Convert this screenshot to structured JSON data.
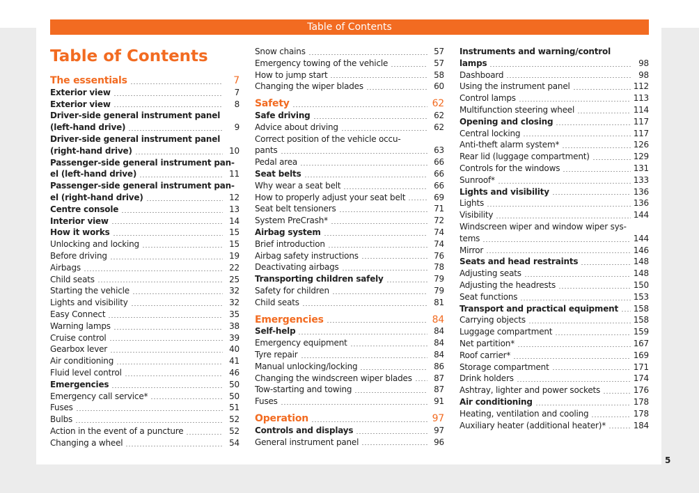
{
  "header": {
    "banner": "Table of Contents",
    "title": "Table of Contents"
  },
  "columns": [
    [
      {
        "style": "section",
        "lines": [
          "The essentials"
        ],
        "page": 7
      },
      {
        "style": "bold",
        "lines": [
          "Exterior view"
        ],
        "page": 7
      },
      {
        "style": "bold",
        "lines": [
          "Exterior view"
        ],
        "page": 8
      },
      {
        "style": "bold",
        "lines": [
          "Driver-side general instrument panel",
          "(left-hand drive)"
        ],
        "page": 9
      },
      {
        "style": "bold",
        "lines": [
          "Driver-side general instrument panel",
          "(right-hand drive)"
        ],
        "page": 10
      },
      {
        "style": "bold",
        "lines": [
          "Passenger-side general instrument pan-",
          "el (left-hand drive)"
        ],
        "page": 11
      },
      {
        "style": "bold",
        "lines": [
          "Passenger-side general instrument pan-",
          "el (right-hand drive)"
        ],
        "page": 12
      },
      {
        "style": "bold",
        "lines": [
          "Centre console"
        ],
        "page": 13
      },
      {
        "style": "bold",
        "lines": [
          "Interior view"
        ],
        "page": 14
      },
      {
        "style": "bold",
        "lines": [
          "How it works"
        ],
        "page": 15
      },
      {
        "style": "normal",
        "lines": [
          "Unlocking and locking"
        ],
        "page": 15
      },
      {
        "style": "normal",
        "lines": [
          "Before driving"
        ],
        "page": 19
      },
      {
        "style": "normal",
        "lines": [
          "Airbags"
        ],
        "page": 22
      },
      {
        "style": "normal",
        "lines": [
          "Child seats"
        ],
        "page": 25
      },
      {
        "style": "normal",
        "lines": [
          "Starting the vehicle"
        ],
        "page": 32
      },
      {
        "style": "normal",
        "lines": [
          "Lights and visibility"
        ],
        "page": 32
      },
      {
        "style": "normal",
        "lines": [
          "Easy Connect"
        ],
        "page": 35
      },
      {
        "style": "normal",
        "lines": [
          "Warning lamps"
        ],
        "page": 38
      },
      {
        "style": "normal",
        "lines": [
          "Cruise control"
        ],
        "page": 39
      },
      {
        "style": "normal",
        "lines": [
          "Gearbox lever"
        ],
        "page": 40
      },
      {
        "style": "normal",
        "lines": [
          "Air conditioning"
        ],
        "page": 41
      },
      {
        "style": "normal",
        "lines": [
          "Fluid level control"
        ],
        "page": 46
      },
      {
        "style": "bold",
        "lines": [
          "Emergencies"
        ],
        "page": 50
      },
      {
        "style": "normal",
        "lines": [
          "Emergency call service*"
        ],
        "page": 50
      },
      {
        "style": "normal",
        "lines": [
          "Fuses"
        ],
        "page": 51
      },
      {
        "style": "normal",
        "lines": [
          "Bulbs"
        ],
        "page": 52
      },
      {
        "style": "normal",
        "lines": [
          "Action in the event of a puncture"
        ],
        "page": 52
      },
      {
        "style": "normal",
        "lines": [
          "Changing a wheel"
        ],
        "page": 54
      }
    ],
    [
      {
        "style": "normal",
        "lines": [
          "Snow chains"
        ],
        "page": 57
      },
      {
        "style": "normal",
        "lines": [
          "Emergency towing of the vehicle"
        ],
        "page": 57
      },
      {
        "style": "normal",
        "lines": [
          "How to jump start"
        ],
        "page": 58
      },
      {
        "style": "normal",
        "lines": [
          "Changing the wiper blades"
        ],
        "page": 60
      },
      {
        "style": "section",
        "lines": [
          "Safety"
        ],
        "page": 62
      },
      {
        "style": "bold",
        "lines": [
          "Safe driving"
        ],
        "page": 62
      },
      {
        "style": "normal",
        "lines": [
          "Advice about driving"
        ],
        "page": 62
      },
      {
        "style": "normal",
        "lines": [
          "Correct position of the vehicle occu-",
          "pants"
        ],
        "page": 63
      },
      {
        "style": "normal",
        "lines": [
          "Pedal area"
        ],
        "page": 66
      },
      {
        "style": "bold",
        "lines": [
          "Seat belts"
        ],
        "page": 66
      },
      {
        "style": "normal",
        "lines": [
          "Why wear a seat belt"
        ],
        "page": 66
      },
      {
        "style": "normal",
        "lines": [
          "How to properly adjust your seat belt"
        ],
        "page": 69
      },
      {
        "style": "normal",
        "lines": [
          "Seat belt tensioners"
        ],
        "page": 71
      },
      {
        "style": "normal",
        "lines": [
          "System PreCrash*"
        ],
        "page": 72
      },
      {
        "style": "bold",
        "lines": [
          "Airbag system"
        ],
        "page": 74
      },
      {
        "style": "normal",
        "lines": [
          "Brief introduction"
        ],
        "page": 74
      },
      {
        "style": "normal",
        "lines": [
          "Airbag safety instructions"
        ],
        "page": 76
      },
      {
        "style": "normal",
        "lines": [
          "Deactivating airbags"
        ],
        "page": 78
      },
      {
        "style": "bold",
        "lines": [
          "Transporting children safely"
        ],
        "page": 79
      },
      {
        "style": "normal",
        "lines": [
          "Safety for children"
        ],
        "page": 79
      },
      {
        "style": "normal",
        "lines": [
          "Child seats"
        ],
        "page": 81
      },
      {
        "style": "section",
        "lines": [
          "Emergencies"
        ],
        "page": 84
      },
      {
        "style": "bold",
        "lines": [
          "Self-help"
        ],
        "page": 84
      },
      {
        "style": "normal",
        "lines": [
          "Emergency equipment"
        ],
        "page": 84
      },
      {
        "style": "normal",
        "lines": [
          "Tyre repair"
        ],
        "page": 84
      },
      {
        "style": "normal",
        "lines": [
          "Manual unlocking/locking"
        ],
        "page": 86
      },
      {
        "style": "normal",
        "lines": [
          "Changing the windscreen wiper blades"
        ],
        "page": 87
      },
      {
        "style": "normal",
        "lines": [
          "Tow-starting and towing"
        ],
        "page": 87
      },
      {
        "style": "normal",
        "lines": [
          "Fuses"
        ],
        "page": 91
      },
      {
        "style": "section",
        "lines": [
          "Operation"
        ],
        "page": 97
      },
      {
        "style": "bold",
        "lines": [
          "Controls and displays"
        ],
        "page": 97
      },
      {
        "style": "normal",
        "lines": [
          "General instrument panel"
        ],
        "page": 96
      }
    ],
    [
      {
        "style": "bold",
        "lines": [
          "Instruments and warning/control",
          "lamps"
        ],
        "page": 98
      },
      {
        "style": "normal",
        "lines": [
          "Dashboard"
        ],
        "page": 98
      },
      {
        "style": "normal",
        "lines": [
          "Using the instrument panel"
        ],
        "page": 112
      },
      {
        "style": "normal",
        "lines": [
          "Control lamps"
        ],
        "page": 113
      },
      {
        "style": "normal",
        "lines": [
          "Multifunction steering wheel"
        ],
        "page": 114
      },
      {
        "style": "bold",
        "lines": [
          "Opening and closing"
        ],
        "page": 117
      },
      {
        "style": "normal",
        "lines": [
          "Central locking"
        ],
        "page": 117
      },
      {
        "style": "normal",
        "lines": [
          "Anti-theft alarm system*"
        ],
        "page": 126
      },
      {
        "style": "normal",
        "lines": [
          "Rear lid (luggage compartment)"
        ],
        "page": 129
      },
      {
        "style": "normal",
        "lines": [
          "Controls for the windows"
        ],
        "page": 131
      },
      {
        "style": "normal",
        "lines": [
          "Sunroof*"
        ],
        "page": 133
      },
      {
        "style": "bold",
        "lines": [
          "Lights and visibility"
        ],
        "page": 136
      },
      {
        "style": "normal",
        "lines": [
          "Lights"
        ],
        "page": 136
      },
      {
        "style": "normal",
        "lines": [
          "Visibility"
        ],
        "page": 144
      },
      {
        "style": "normal",
        "lines": [
          "Windscreen wiper and window wiper sys-",
          "tems"
        ],
        "page": 144
      },
      {
        "style": "normal",
        "lines": [
          "Mirror"
        ],
        "page": 146
      },
      {
        "style": "bold",
        "lines": [
          "Seats and head restraints"
        ],
        "page": 148
      },
      {
        "style": "normal",
        "lines": [
          "Adjusting seats"
        ],
        "page": 148
      },
      {
        "style": "normal",
        "lines": [
          "Adjusting the headrests"
        ],
        "page": 150
      },
      {
        "style": "normal",
        "lines": [
          "Seat functions"
        ],
        "page": 153
      },
      {
        "style": "bold",
        "lines": [
          "Transport and practical equipment"
        ],
        "page": 158
      },
      {
        "style": "normal",
        "lines": [
          "Carrying objects"
        ],
        "page": 158
      },
      {
        "style": "normal",
        "lines": [
          "Luggage compartment"
        ],
        "page": 159
      },
      {
        "style": "normal",
        "lines": [
          "Net partition*"
        ],
        "page": 167
      },
      {
        "style": "normal",
        "lines": [
          "Roof carrier*"
        ],
        "page": 169
      },
      {
        "style": "normal",
        "lines": [
          "Storage compartment"
        ],
        "page": 171
      },
      {
        "style": "normal",
        "lines": [
          "Drink holders"
        ],
        "page": 174
      },
      {
        "style": "normal",
        "lines": [
          "Ashtray, lighter and power sockets"
        ],
        "page": 176
      },
      {
        "style": "bold",
        "lines": [
          "Air conditioning"
        ],
        "page": 178
      },
      {
        "style": "normal",
        "lines": [
          "Heating, ventilation and cooling"
        ],
        "page": 178
      },
      {
        "style": "normal",
        "lines": [
          "Auxiliary heater (additional heater)*"
        ],
        "page": 184
      }
    ]
  ],
  "footer": {
    "page_number": 5
  }
}
